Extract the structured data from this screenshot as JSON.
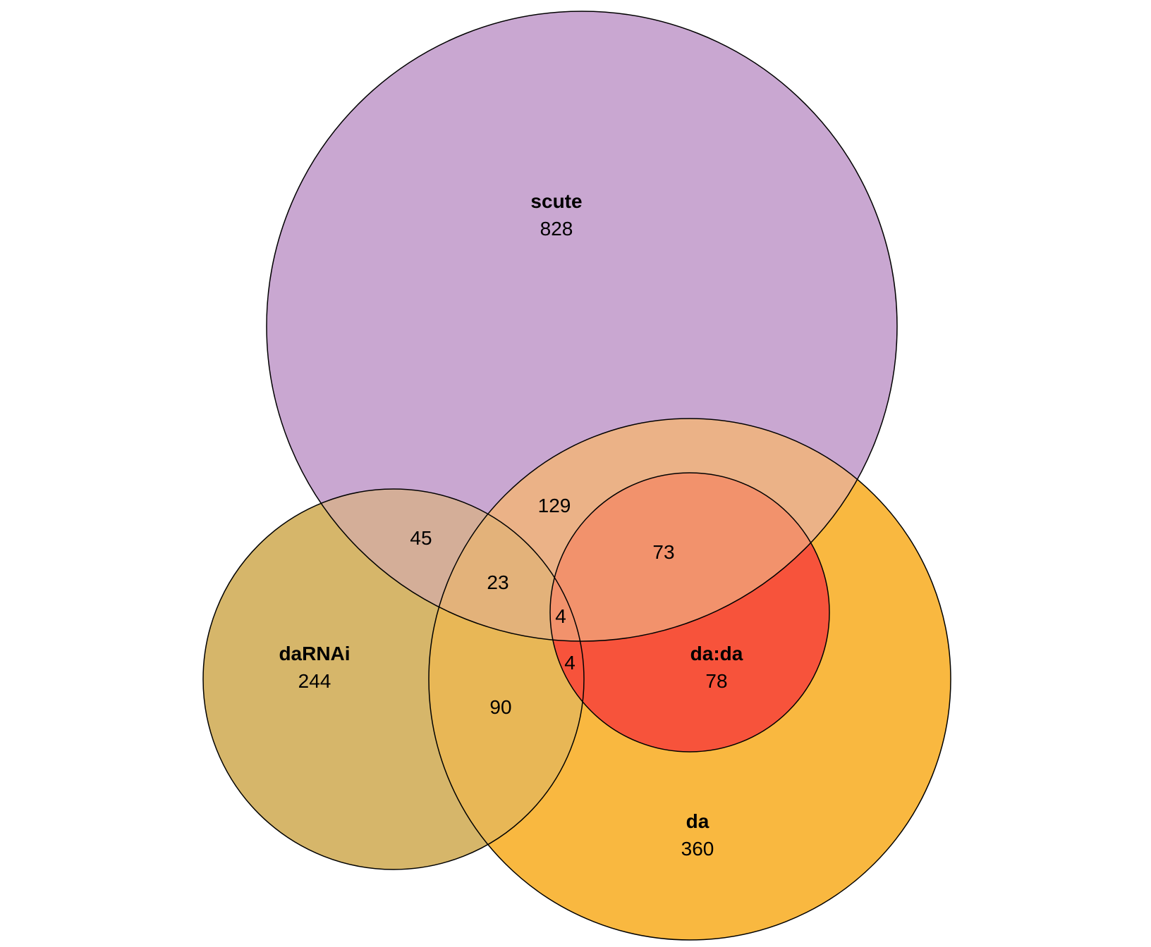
{
  "sets": [
    {
      "key": "scute",
      "label": "scute",
      "count": "828",
      "color": "#c9a7d1"
    },
    {
      "key": "darnai",
      "label": "daRNAi",
      "count": "244",
      "color": "#d6b66a"
    },
    {
      "key": "da",
      "label": "da",
      "count": "360",
      "color": "#f9b840"
    },
    {
      "key": "dada",
      "label": "da:da",
      "count": "78",
      "color": "#f7533b"
    }
  ],
  "intersections": {
    "scute_darnai": "45",
    "scute_da": "129",
    "scute_darnai_da": "23",
    "scute_da_dada": "73",
    "scute_darnai_da_dada": "4",
    "darnai_da_dada": "4",
    "darnai_da": "90"
  },
  "region_colors": {
    "scute_darnai": "#d4ae98",
    "scute_da": "#ebb287",
    "scute_darnai_da": "#e3b27a",
    "scute_da_dada": "#f2926c",
    "darnai_da": "#e8b756"
  }
}
